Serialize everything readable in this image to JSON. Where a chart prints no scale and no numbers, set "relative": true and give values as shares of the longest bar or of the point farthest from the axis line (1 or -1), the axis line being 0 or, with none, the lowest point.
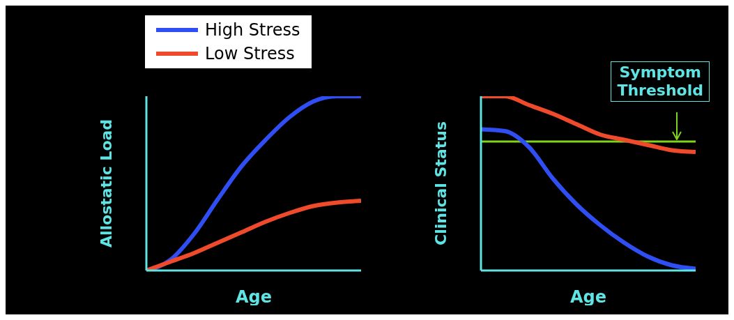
{
  "chart_data": [
    {
      "type": "line",
      "relative": true,
      "xlabel": "Age",
      "ylabel": "Allostatic Load",
      "categories": [
        null,
        null,
        null,
        null,
        null,
        null,
        null,
        null,
        null,
        null
      ],
      "legend": "top",
      "series": [
        {
          "name": "High Stress",
          "color": "#2f4ff5",
          "values": [
            0,
            0.06,
            0.21,
            0.41,
            0.6,
            0.75,
            0.88,
            0.97,
            1,
            1
          ]
        },
        {
          "name": "Low Stress",
          "color": "#ef4a2c",
          "values": [
            0,
            0.05,
            0.1,
            0.16,
            0.22,
            0.28,
            0.33,
            0.37,
            0.39,
            0.4
          ]
        }
      ]
    },
    {
      "type": "line",
      "relative": true,
      "xlabel": "Age",
      "ylabel": "Clinical Status",
      "categories": [
        null,
        null,
        null,
        null,
        null,
        null,
        null,
        null,
        null,
        null
      ],
      "series": [
        {
          "color": "#2f4ff5",
          "values": [
            0.81,
            0.8,
            0.71,
            0.53,
            0.38,
            0.26,
            0.16,
            0.08,
            0.03,
            0.01
          ]
        },
        {
          "color": "#ef4a2c",
          "values": [
            1,
            1,
            0.95,
            0.9,
            0.84,
            0.78,
            0.75,
            0.72,
            0.69,
            0.68
          ]
        }
      ],
      "ref_lines": [
        {
          "axis": "y",
          "value": 0.74,
          "label": "Symptom Threshold",
          "color": "#7fd41a"
        }
      ]
    }
  ]
}
